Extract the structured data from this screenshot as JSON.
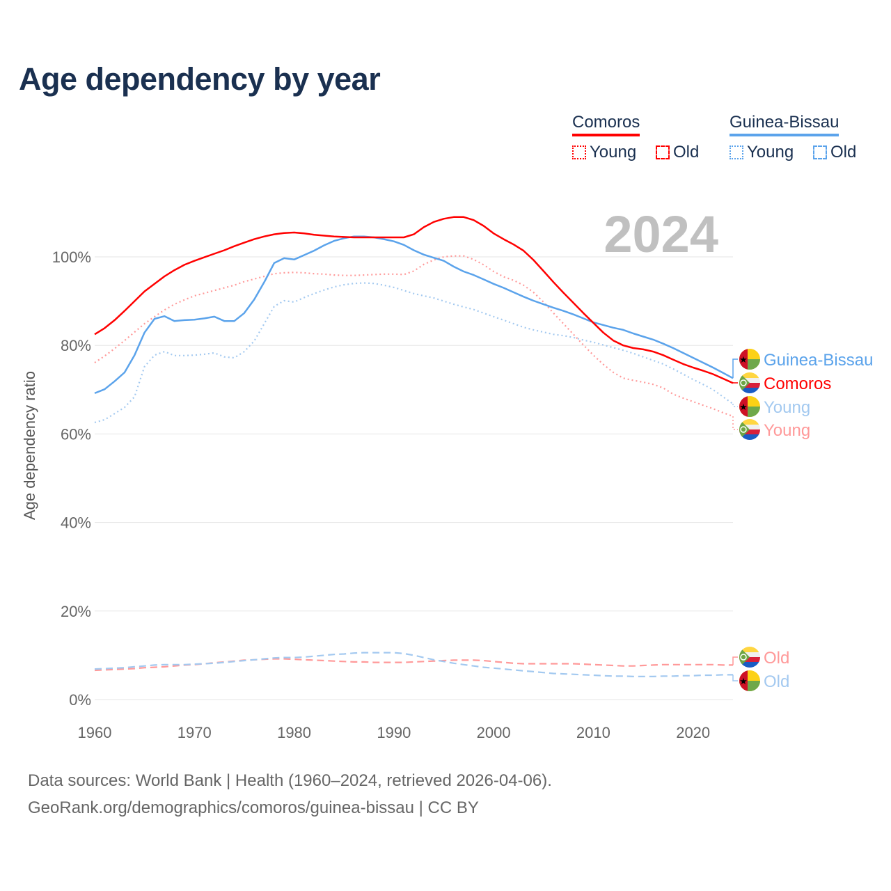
{
  "chart_data": {
    "type": "line",
    "title": "Age dependency by year",
    "ylabel": "Age dependency ratio",
    "xlabel": "",
    "year_label": "2024",
    "xlim": [
      1960,
      2024
    ],
    "ylim": [
      0,
      110
    ],
    "x_ticks": [
      1960,
      1970,
      1980,
      1990,
      2000,
      2010,
      2020
    ],
    "y_ticks": [
      0,
      20,
      40,
      60,
      80,
      100
    ],
    "y_tick_labels": [
      "0%",
      "20%",
      "40%",
      "60%",
      "80%",
      "100%"
    ],
    "grid": true,
    "legend_position": "top-right",
    "legend": {
      "groups": [
        {
          "country": "Comoros",
          "color": "#ff0000",
          "young": "Young",
          "old": "Old"
        },
        {
          "country": "Guinea-Bissau",
          "color": "#5ba3eb",
          "young": "Young",
          "old": "Old"
        }
      ]
    },
    "x_start": 1960,
    "series": [
      {
        "name": "Comoros",
        "label": "Comoros",
        "style": "solid",
        "color": "#ff0000",
        "flag": "comoros",
        "values": [
          82.5,
          83.9,
          85.7,
          87.8,
          90.0,
          92.2,
          93.9,
          95.6,
          97.0,
          98.2,
          99.1,
          99.9,
          100.7,
          101.5,
          102.4,
          103.2,
          104.0,
          104.6,
          105.1,
          105.4,
          105.5,
          105.3,
          105.0,
          104.8,
          104.6,
          104.5,
          104.4,
          104.4,
          104.4,
          104.4,
          104.4,
          104.4,
          105.1,
          106.7,
          107.9,
          108.6,
          109.0,
          109.0,
          108.3,
          107.0,
          105.3,
          104.0,
          102.8,
          101.4,
          99.3,
          96.8,
          94.3,
          91.9,
          89.6,
          87.3,
          85.1,
          82.9,
          81.1,
          80.0,
          79.4,
          79.1,
          78.6,
          77.8,
          76.8,
          75.8,
          75.0,
          74.3,
          73.5,
          72.5,
          71.5
        ]
      },
      {
        "name": "Comoros Young",
        "label": "Young",
        "style": "dotted",
        "color": "#ff9999",
        "flag": "comoros",
        "values": [
          76.1,
          77.6,
          79.3,
          81.1,
          83.0,
          84.9,
          86.5,
          88.0,
          89.3,
          90.3,
          91.2,
          91.8,
          92.4,
          93.0,
          93.6,
          94.4,
          95.0,
          95.6,
          96.2,
          96.4,
          96.5,
          96.4,
          96.2,
          96.1,
          95.9,
          95.8,
          95.8,
          95.9,
          96.0,
          96.1,
          96.1,
          96.0,
          96.8,
          98.3,
          99.3,
          100.0,
          100.2,
          100.2,
          99.4,
          98.2,
          96.7,
          95.5,
          94.7,
          93.6,
          92.0,
          89.8,
          87.3,
          84.9,
          82.5,
          80.1,
          77.8,
          75.7,
          73.9,
          72.6,
          72.1,
          71.7,
          71.2,
          70.4,
          69.0,
          68.1,
          67.3,
          66.5,
          65.7,
          64.8,
          64.0
        ]
      },
      {
        "name": "Comoros Old",
        "label": "Old",
        "style": "dashed",
        "color": "#ff9999",
        "flag": "comoros",
        "values": [
          6.6,
          6.7,
          6.8,
          6.9,
          7.0,
          7.2,
          7.3,
          7.4,
          7.6,
          7.8,
          7.9,
          8.1,
          8.3,
          8.5,
          8.7,
          8.9,
          9.0,
          9.1,
          9.2,
          9.2,
          9.1,
          9.0,
          8.9,
          8.8,
          8.7,
          8.6,
          8.5,
          8.5,
          8.4,
          8.4,
          8.4,
          8.4,
          8.5,
          8.6,
          8.7,
          8.8,
          8.9,
          8.9,
          8.9,
          8.8,
          8.6,
          8.4,
          8.2,
          8.1,
          8.1,
          8.1,
          8.1,
          8.1,
          8.1,
          8.0,
          7.9,
          7.8,
          7.7,
          7.6,
          7.6,
          7.7,
          7.8,
          7.9,
          7.9,
          7.9,
          7.9,
          7.9,
          7.9,
          7.8,
          7.8
        ]
      },
      {
        "name": "Guinea-Bissau",
        "label": "Guinea-Bissau",
        "style": "solid",
        "color": "#5ba3eb",
        "flag": "guinea-bissau",
        "values": [
          69.2,
          70.1,
          71.9,
          73.9,
          77.8,
          82.9,
          86.0,
          86.6,
          85.5,
          85.7,
          85.8,
          86.1,
          86.5,
          85.5,
          85.5,
          87.3,
          90.4,
          94.3,
          98.6,
          99.7,
          99.4,
          100.4,
          101.4,
          102.6,
          103.6,
          104.2,
          104.6,
          104.6,
          104.4,
          104.0,
          103.5,
          102.7,
          101.5,
          100.5,
          99.8,
          99.1,
          97.8,
          96.7,
          95.9,
          94.9,
          93.9,
          93.0,
          92.0,
          91.0,
          90.1,
          89.3,
          88.5,
          87.8,
          87.0,
          86.1,
          85.2,
          84.6,
          84.0,
          83.5,
          82.7,
          82.0,
          81.3,
          80.4,
          79.4,
          78.3,
          77.2,
          76.1,
          75.0,
          73.8,
          72.6
        ]
      },
      {
        "name": "Guinea-Bissau Young",
        "label": "Young",
        "style": "dotted",
        "color": "#a3c9f0",
        "flag": "guinea-bissau",
        "values": [
          62.6,
          63.2,
          64.6,
          66.0,
          68.4,
          75.2,
          77.8,
          78.6,
          77.7,
          77.7,
          77.8,
          78.0,
          78.3,
          77.4,
          77.2,
          78.6,
          81.0,
          84.9,
          88.8,
          90.1,
          89.8,
          90.8,
          91.7,
          92.5,
          93.2,
          93.7,
          94.0,
          94.1,
          94.0,
          93.6,
          93.1,
          92.4,
          91.7,
          91.2,
          90.7,
          90.0,
          89.3,
          88.7,
          88.1,
          87.3,
          86.5,
          85.7,
          84.9,
          84.1,
          83.5,
          83.0,
          82.5,
          82.2,
          81.8,
          81.2,
          80.7,
          80.1,
          79.5,
          78.9,
          78.2,
          77.4,
          76.6,
          75.8,
          74.7,
          73.5,
          72.3,
          71.2,
          70.0,
          68.4,
          66.8
        ]
      },
      {
        "name": "Guinea-Bissau Old",
        "label": "Old",
        "style": "dashed",
        "color": "#a3c9f0",
        "flag": "guinea-bissau",
        "values": [
          6.9,
          7.0,
          7.1,
          7.2,
          7.4,
          7.6,
          7.8,
          7.9,
          7.9,
          7.9,
          8.0,
          8.1,
          8.2,
          8.4,
          8.6,
          8.8,
          9.0,
          9.2,
          9.4,
          9.5,
          9.5,
          9.6,
          9.8,
          10.0,
          10.2,
          10.3,
          10.5,
          10.6,
          10.6,
          10.6,
          10.6,
          10.4,
          10.0,
          9.5,
          9.0,
          8.6,
          8.2,
          7.9,
          7.6,
          7.3,
          7.1,
          6.9,
          6.7,
          6.5,
          6.3,
          6.1,
          5.9,
          5.8,
          5.7,
          5.6,
          5.5,
          5.4,
          5.3,
          5.3,
          5.2,
          5.2,
          5.2,
          5.3,
          5.3,
          5.4,
          5.4,
          5.5,
          5.5,
          5.6,
          5.6
        ]
      }
    ]
  },
  "footer": {
    "line1": "Data sources: World Bank | Health (1960–2024, retrieved 2026-04-06).",
    "line2": "GeoRank.org/demographics/comoros/guinea-bissau | CC BY"
  }
}
